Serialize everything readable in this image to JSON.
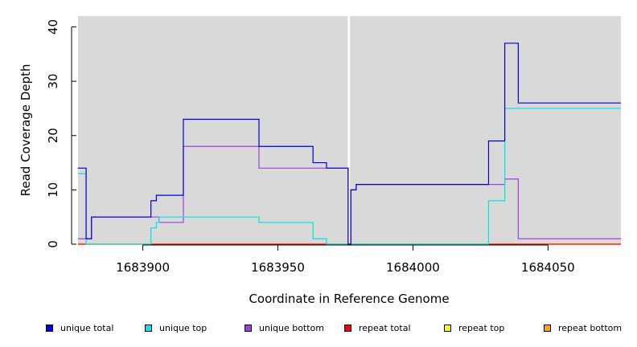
{
  "chart_data": {
    "type": "line",
    "step": true,
    "title": "",
    "xlabel": "Coordinate in Reference Genome",
    "ylabel": "Read Coverage Depth",
    "xlim": [
      1683876,
      1684077
    ],
    "ylim": [
      0,
      42
    ],
    "xticks": [
      "1683900",
      "1683950",
      "1684000",
      "1684050"
    ],
    "yticks": [
      "0",
      "10",
      "20",
      "30",
      "40"
    ],
    "gap": {
      "from": 1683976,
      "to": 1683977
    },
    "legend_position": "bottom",
    "series": [
      {
        "name": "unique total",
        "color": "#0000dd",
        "points": [
          [
            1683876,
            14
          ],
          [
            1683879,
            1
          ],
          [
            1683881,
            5
          ],
          [
            1683903,
            8
          ],
          [
            1683905,
            9
          ],
          [
            1683915,
            23
          ],
          [
            1683943,
            18
          ],
          [
            1683963,
            15
          ],
          [
            1683968,
            14
          ],
          [
            1683976,
            0
          ],
          [
            1683977,
            10
          ],
          [
            1683979,
            11
          ],
          [
            1684028,
            19
          ],
          [
            1684034,
            37
          ],
          [
            1684039,
            26
          ],
          [
            1684077,
            26
          ]
        ]
      },
      {
        "name": "unique top",
        "color": "#00e5e5",
        "points": [
          [
            1683876,
            13
          ],
          [
            1683879,
            0
          ],
          [
            1683903,
            3
          ],
          [
            1683905,
            4
          ],
          [
            1683906,
            5
          ],
          [
            1683943,
            4
          ],
          [
            1683963,
            1
          ],
          [
            1683968,
            0
          ],
          [
            1684028,
            8
          ],
          [
            1684034,
            25
          ],
          [
            1684077,
            25
          ]
        ]
      },
      {
        "name": "unique bottom",
        "color": "#a040e0",
        "points": [
          [
            1683876,
            1
          ],
          [
            1683881,
            5
          ],
          [
            1683906,
            4
          ],
          [
            1683915,
            18
          ],
          [
            1683943,
            14
          ],
          [
            1683976,
            0
          ],
          [
            1683977,
            10
          ],
          [
            1683979,
            11
          ],
          [
            1684034,
            12
          ],
          [
            1684039,
            1
          ],
          [
            1684077,
            1
          ]
        ]
      },
      {
        "name": "repeat total",
        "color": "#ff0000",
        "points": [
          [
            1683876,
            0
          ],
          [
            1684077,
            0
          ]
        ]
      },
      {
        "name": "repeat top",
        "color": "#ffff00",
        "points": [
          [
            1683876,
            0
          ],
          [
            1684077,
            0
          ]
        ]
      },
      {
        "name": "repeat bottom",
        "color": "#ffa500",
        "points": [
          [
            1683876,
            0
          ],
          [
            1684077,
            0
          ]
        ]
      }
    ]
  }
}
